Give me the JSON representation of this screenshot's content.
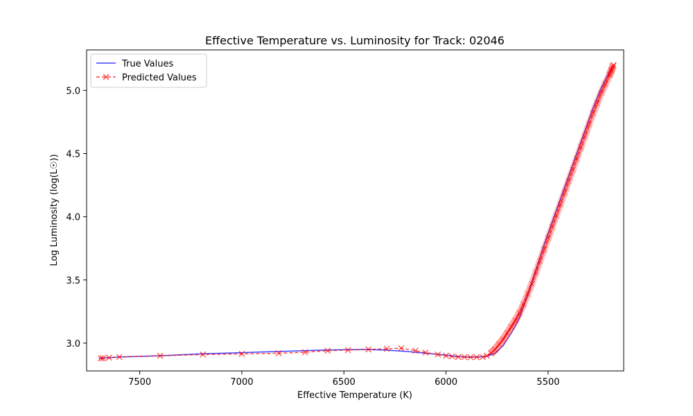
{
  "chart_data": {
    "type": "line",
    "title": "Effective Temperature vs. Luminosity for Track: 02046",
    "xlabel": "Effective Temperature (K)",
    "ylabel": "Log Luminosity (log(L☉))",
    "xlim": [
      7760,
      5130
    ],
    "ylim": [
      2.78,
      5.32
    ],
    "x_inverted": true,
    "x_ticks": [
      7500,
      7000,
      6500,
      6000,
      5500
    ],
    "x_tick_labels": [
      "7500",
      "7000",
      "6500",
      "6000",
      "5500"
    ],
    "y_ticks": [
      3.0,
      3.5,
      4.0,
      4.5,
      5.0
    ],
    "y_tick_labels": [
      "3.0",
      "3.5",
      "4.0",
      "4.5",
      "5.0"
    ],
    "grid": false,
    "legend_position": "top-left",
    "series": [
      {
        "name": "True Values",
        "color": "#0000ff",
        "style": "solid",
        "marker": "none",
        "x": [
          7700,
          7650,
          7600,
          7400,
          7200,
          7000,
          6800,
          6600,
          6500,
          6400,
          6300,
          6200,
          6100,
          6000,
          5950,
          5900,
          5850,
          5800,
          5760,
          5720,
          5680,
          5640,
          5600,
          5560,
          5520,
          5480,
          5440,
          5400,
          5360,
          5320,
          5280,
          5240,
          5200,
          5180
        ],
        "y": [
          2.88,
          2.885,
          2.89,
          2.9,
          2.915,
          2.925,
          2.935,
          2.945,
          2.948,
          2.95,
          2.945,
          2.935,
          2.92,
          2.905,
          2.895,
          2.89,
          2.89,
          2.895,
          2.92,
          2.98,
          3.08,
          3.2,
          3.38,
          3.58,
          3.78,
          3.96,
          4.14,
          4.32,
          4.5,
          4.68,
          4.86,
          5.02,
          5.15,
          5.2
        ]
      },
      {
        "name": "Predicted Values",
        "color": "#ff0000",
        "style": "dashed",
        "marker": "x",
        "x": [
          7690,
          7680,
          7650,
          7600,
          7400,
          7190,
          7000,
          6820,
          6690,
          6580,
          6480,
          6380,
          6290,
          6220,
          6150,
          6100,
          6040,
          6000,
          5970,
          5940,
          5910,
          5880,
          5850,
          5820,
          5800,
          5780,
          5760,
          5740,
          5720,
          5700,
          5680,
          5660,
          5640,
          5620,
          5600,
          5580,
          5560,
          5540,
          5520,
          5500,
          5480,
          5460,
          5440,
          5420,
          5400,
          5380,
          5360,
          5340,
          5320,
          5300,
          5280,
          5260,
          5240,
          5220,
          5200,
          5190,
          5180
        ],
        "y": [
          2.88,
          2.88,
          2.885,
          2.89,
          2.9,
          2.91,
          2.915,
          2.92,
          2.928,
          2.94,
          2.945,
          2.95,
          2.955,
          2.96,
          2.94,
          2.925,
          2.91,
          2.9,
          2.895,
          2.89,
          2.89,
          2.888,
          2.889,
          2.89,
          2.9,
          2.92,
          2.95,
          2.99,
          3.03,
          3.08,
          3.13,
          3.18,
          3.24,
          3.31,
          3.39,
          3.47,
          3.56,
          3.65,
          3.74,
          3.83,
          3.92,
          4.01,
          4.1,
          4.19,
          4.28,
          4.37,
          4.46,
          4.55,
          4.64,
          4.73,
          4.82,
          4.9,
          4.98,
          5.05,
          5.12,
          5.16,
          5.2
        ]
      }
    ]
  }
}
